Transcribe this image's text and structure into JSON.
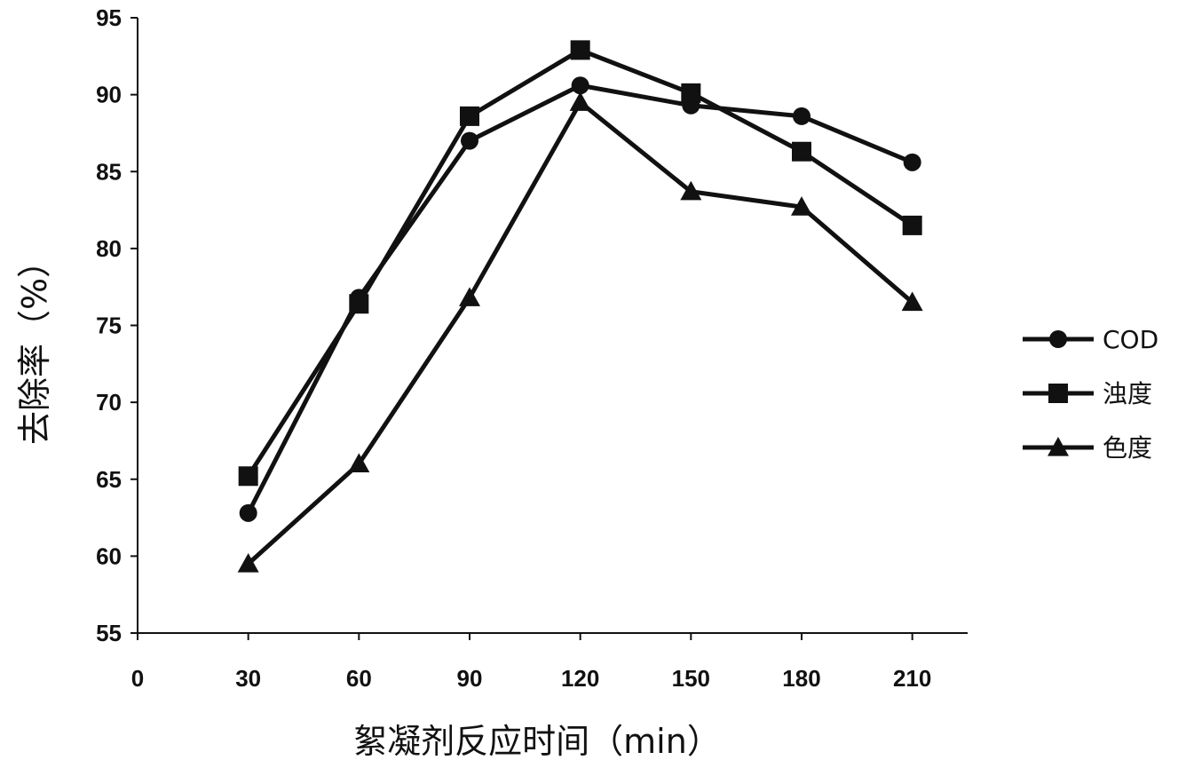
{
  "chart_data": {
    "type": "line",
    "title": "",
    "xlabel": "絮凝剂反应时间（min）",
    "ylabel": "去除率（%）",
    "xlim": [
      0,
      225
    ],
    "ylim": [
      55,
      95
    ],
    "x_ticks": [
      0,
      30,
      60,
      90,
      120,
      150,
      180,
      210
    ],
    "y_ticks": [
      55,
      60,
      65,
      70,
      75,
      80,
      85,
      90,
      95
    ],
    "grid": false,
    "legend_position": "right",
    "x": [
      30,
      60,
      90,
      120,
      150,
      180,
      210
    ],
    "series": [
      {
        "name": "COD",
        "marker": "circle",
        "values": [
          62.8,
          76.8,
          87.0,
          90.6,
          89.3,
          88.6,
          85.6
        ]
      },
      {
        "name": "浊度",
        "marker": "square",
        "values": [
          65.2,
          76.4,
          88.6,
          92.9,
          90.1,
          86.3,
          81.5
        ]
      },
      {
        "name": "色度",
        "marker": "triangle",
        "values": [
          59.5,
          66.0,
          76.8,
          89.5,
          83.7,
          82.7,
          76.5
        ]
      }
    ],
    "colors": {
      "line": "#111111",
      "background": "#ffffff"
    }
  }
}
